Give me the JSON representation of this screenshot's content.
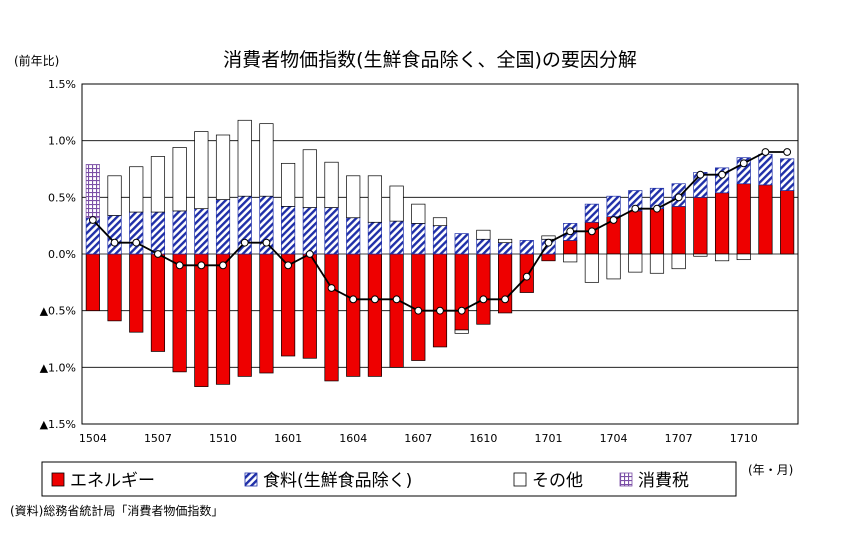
{
  "chart_data": {
    "type": "bar",
    "title": "消費者物価指数(生鮮食品除く、全国)の要因分解",
    "ylabel": "(前年比)",
    "xlabel": "(年・月)",
    "source": "(資料)総務省統計局「消費者物価指数」",
    "ylim": [
      -1.5,
      1.5
    ],
    "yticks": [
      "1.5%",
      "1.0%",
      "0.5%",
      "0.0%",
      "▲0.5%",
      "▲1.0%",
      "▲1.5%"
    ],
    "yticks_values": [
      1.5,
      1.0,
      0.5,
      0.0,
      -0.5,
      -1.0,
      -1.5
    ],
    "xtick_labels": [
      "1504",
      "1507",
      "1510",
      "1601",
      "1604",
      "1607",
      "1610",
      "1701",
      "1704",
      "1707",
      "1710"
    ],
    "categories": [
      "1504",
      "1505",
      "1506",
      "1507",
      "1508",
      "1509",
      "1510",
      "1511",
      "1512",
      "1601",
      "1602",
      "1603",
      "1604",
      "1605",
      "1606",
      "1607",
      "1608",
      "1609",
      "1610",
      "1611",
      "1612",
      "1701",
      "1702",
      "1703",
      "1704",
      "1705",
      "1706",
      "1707",
      "1708",
      "1709",
      "1710",
      "1711",
      "1712"
    ],
    "series": [
      {
        "name": "エネルギー",
        "color": "#ee0000",
        "pattern": "solid",
        "values": [
          -0.5,
          -0.59,
          -0.69,
          -0.86,
          -1.04,
          -1.17,
          -1.15,
          -1.08,
          -1.05,
          -0.9,
          -0.92,
          -1.12,
          -1.08,
          -1.08,
          -1.0,
          -0.94,
          -0.82,
          -0.67,
          -0.62,
          -0.52,
          -0.34,
          -0.06,
          0.12,
          0.28,
          0.33,
          0.38,
          0.4,
          0.42,
          0.5,
          0.54,
          0.62,
          0.61,
          0.56
        ]
      },
      {
        "name": "食料(生鮮食品除く)",
        "color": "#1f2fa8",
        "pattern": "hatch",
        "values": [
          0.32,
          0.34,
          0.37,
          0.37,
          0.38,
          0.4,
          0.48,
          0.51,
          0.51,
          0.42,
          0.41,
          0.41,
          0.32,
          0.28,
          0.29,
          0.27,
          0.25,
          0.18,
          0.13,
          0.1,
          0.12,
          0.13,
          0.15,
          0.16,
          0.18,
          0.18,
          0.18,
          0.2,
          0.22,
          0.22,
          0.23,
          0.27,
          0.28
        ]
      },
      {
        "name": "その他",
        "color": "#ffffff",
        "pattern": "outline",
        "values": [
          0.0,
          0.35,
          0.4,
          0.49,
          0.56,
          0.68,
          0.57,
          0.67,
          0.64,
          0.38,
          0.51,
          0.4,
          0.37,
          0.41,
          0.31,
          0.17,
          0.07,
          -0.03,
          0.08,
          0.03,
          0.0,
          0.03,
          -0.07,
          -0.25,
          -0.22,
          -0.16,
          -0.17,
          -0.13,
          -0.02,
          -0.06,
          -0.05,
          0.0,
          0.0
        ]
      },
      {
        "name": "消費税",
        "color": "#7b4fa6",
        "pattern": "grid",
        "values": [
          0.47,
          0,
          0,
          0,
          0,
          0,
          0,
          0,
          0,
          0,
          0,
          0,
          0,
          0,
          0,
          0,
          0,
          0,
          0,
          0,
          0,
          0,
          0,
          0,
          0,
          0,
          0,
          0,
          0,
          0,
          0,
          0,
          0
        ]
      },
      {
        "name": "総合(生鮮食品除く)",
        "type": "line",
        "values": [
          0.3,
          0.1,
          0.1,
          0.0,
          -0.1,
          -0.1,
          -0.1,
          0.1,
          0.1,
          -0.1,
          0.0,
          -0.3,
          -0.4,
          -0.4,
          -0.4,
          -0.5,
          -0.5,
          -0.5,
          -0.4,
          -0.4,
          -0.2,
          0.1,
          0.2,
          0.2,
          0.3,
          0.4,
          0.4,
          0.5,
          0.7,
          0.7,
          0.8,
          0.9,
          0.9
        ]
      }
    ],
    "legend": [
      {
        "label": "エネルギー",
        "pattern": "solid"
      },
      {
        "label": "食料(生鮮食品除く)",
        "pattern": "hatch"
      },
      {
        "label": "その他",
        "pattern": "outline"
      },
      {
        "label": "消費税",
        "pattern": "grid"
      }
    ],
    "grid": true,
    "legend_position": "bottom"
  }
}
